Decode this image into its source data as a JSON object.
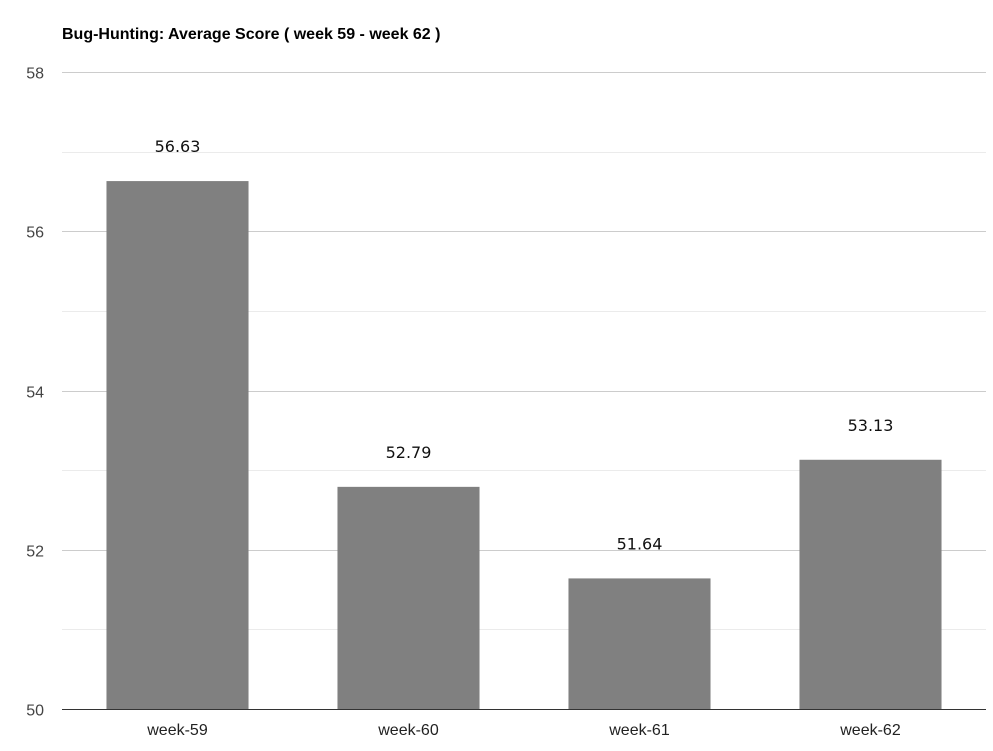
{
  "chart_data": {
    "type": "bar",
    "title": "Bug-Hunting: Average Score ( week 59 - week 62 )",
    "xlabel": "",
    "ylabel": "",
    "categories": [
      "week-59",
      "week-60",
      "week-61",
      "week-62"
    ],
    "values": [
      56.63,
      52.79,
      51.64,
      53.13
    ],
    "data_labels": [
      "56.63",
      "52.79",
      "51.64",
      "53.13"
    ],
    "ylim": [
      50,
      58
    ],
    "y_ticks": [
      50,
      52,
      54,
      56,
      58
    ],
    "y_tick_labels": [
      "50",
      "52",
      "54",
      "56",
      "58"
    ],
    "minor_grid_step": 1,
    "grid": true,
    "legend": "none",
    "bar_color": "#808080",
    "major_grid_color": "#cccccc",
    "minor_grid_color": "#ebebeb"
  }
}
